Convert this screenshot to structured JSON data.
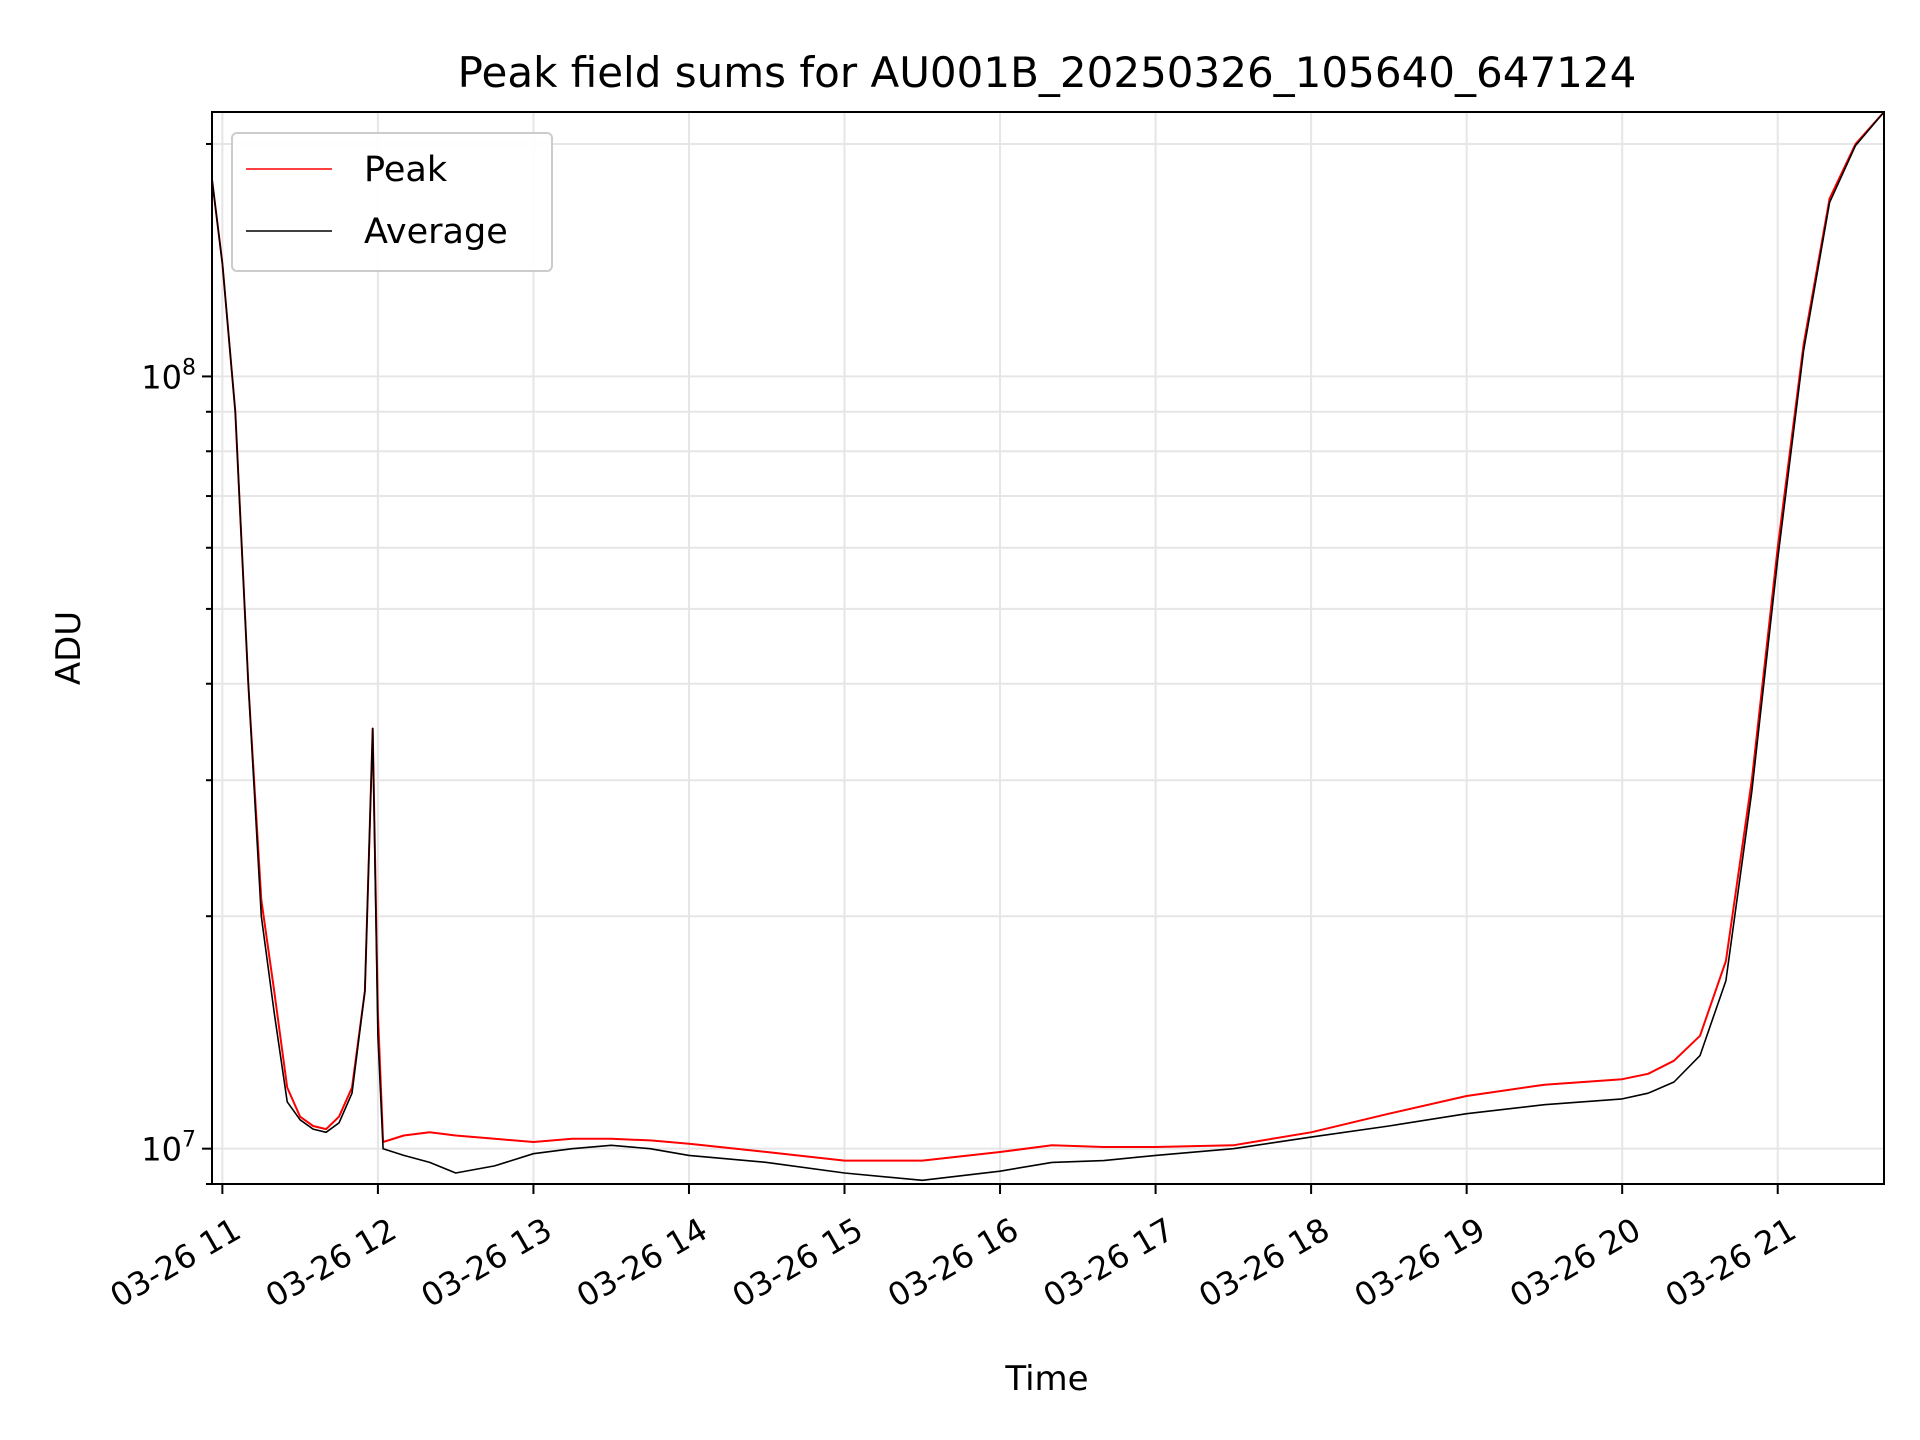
{
  "chart_data": {
    "type": "line",
    "title": "Peak field sums for AU001B_20250326_105640_647124",
    "xlabel": "Time",
    "ylabel": "ADU",
    "yscale": "log",
    "ylim": [
      9000000,
      220000000
    ],
    "xlim": [
      "03-26 10:56",
      "03-26 21:41"
    ],
    "x_ticks": [
      "03-26 11",
      "03-26 12",
      "03-26 13",
      "03-26 14",
      "03-26 15",
      "03-26 16",
      "03-26 17",
      "03-26 18",
      "03-26 19",
      "03-26 20",
      "03-26 21"
    ],
    "y_ticks": [
      {
        "value": 10000000,
        "base": "10",
        "exp": "7"
      },
      {
        "value": 100000000,
        "base": "10",
        "exp": "8"
      }
    ],
    "grid": true,
    "legend_position": "top-left",
    "series": [
      {
        "name": "Peak",
        "color": "#ff0000",
        "x": [
          "03-26 10:56",
          "03-26 11:00",
          "03-26 11:05",
          "03-26 11:10",
          "03-26 11:15",
          "03-26 11:20",
          "03-26 11:25",
          "03-26 11:30",
          "03-26 11:35",
          "03-26 11:40",
          "03-26 11:45",
          "03-26 11:50",
          "03-26 11:55",
          "03-26 11:58",
          "03-26 12:00",
          "03-26 12:02",
          "03-26 12:10",
          "03-26 12:20",
          "03-26 12:30",
          "03-26 12:45",
          "03-26 13:00",
          "03-26 13:15",
          "03-26 13:30",
          "03-26 13:45",
          "03-26 14:00",
          "03-26 14:30",
          "03-26 15:00",
          "03-26 15:30",
          "03-26 16:00",
          "03-26 16:20",
          "03-26 16:40",
          "03-26 17:00",
          "03-26 17:30",
          "03-26 18:00",
          "03-26 18:30",
          "03-26 19:00",
          "03-26 19:30",
          "03-26 20:00",
          "03-26 20:10",
          "03-26 20:20",
          "03-26 20:30",
          "03-26 20:40",
          "03-26 20:50",
          "03-26 21:00",
          "03-26 21:10",
          "03-26 21:20",
          "03-26 21:30",
          "03-26 21:41"
        ],
        "values": [
          180000000,
          140000000,
          90000000,
          40000000,
          21000000,
          16000000,
          12000000,
          11000000,
          10700000,
          10600000,
          11000000,
          12000000,
          16000000,
          35000000,
          15000000,
          10200000,
          10400000,
          10500000,
          10400000,
          10300000,
          10200000,
          10300000,
          10300000,
          10250000,
          10150000,
          9900000,
          9650000,
          9650000,
          9900000,
          10100000,
          10050000,
          10050000,
          10100000,
          10500000,
          11100000,
          11700000,
          12100000,
          12300000,
          12500000,
          13000000,
          14000000,
          17500000,
          30000000,
          60000000,
          110000000,
          170000000,
          200000000,
          220000000
        ]
      },
      {
        "name": "Average",
        "color": "#000000",
        "x": [
          "03-26 10:56",
          "03-26 11:00",
          "03-26 11:05",
          "03-26 11:10",
          "03-26 11:15",
          "03-26 11:20",
          "03-26 11:25",
          "03-26 11:30",
          "03-26 11:35",
          "03-26 11:40",
          "03-26 11:45",
          "03-26 11:50",
          "03-26 11:55",
          "03-26 11:58",
          "03-26 12:00",
          "03-26 12:02",
          "03-26 12:10",
          "03-26 12:20",
          "03-26 12:30",
          "03-26 12:45",
          "03-26 13:00",
          "03-26 13:15",
          "03-26 13:30",
          "03-26 13:45",
          "03-26 14:00",
          "03-26 14:30",
          "03-26 15:00",
          "03-26 15:30",
          "03-26 16:00",
          "03-26 16:20",
          "03-26 16:40",
          "03-26 17:00",
          "03-26 17:30",
          "03-26 18:00",
          "03-26 18:30",
          "03-26 19:00",
          "03-26 19:30",
          "03-26 20:00",
          "03-26 20:10",
          "03-26 20:20",
          "03-26 20:30",
          "03-26 20:40",
          "03-26 20:50",
          "03-26 21:00",
          "03-26 21:10",
          "03-26 21:20",
          "03-26 21:30",
          "03-26 21:41"
        ],
        "values": [
          180000000,
          140000000,
          90000000,
          40000000,
          20000000,
          15000000,
          11500000,
          10900000,
          10600000,
          10500000,
          10800000,
          11800000,
          16000000,
          35000000,
          14000000,
          10000000,
          9800000,
          9600000,
          9300000,
          9500000,
          9850000,
          10000000,
          10100000,
          10000000,
          9800000,
          9600000,
          9300000,
          9100000,
          9350000,
          9600000,
          9650000,
          9800000,
          10000000,
          10350000,
          10700000,
          11100000,
          11400000,
          11600000,
          11800000,
          12200000,
          13200000,
          16500000,
          29000000,
          58000000,
          108000000,
          168000000,
          199000000,
          220000000
        ]
      }
    ]
  }
}
